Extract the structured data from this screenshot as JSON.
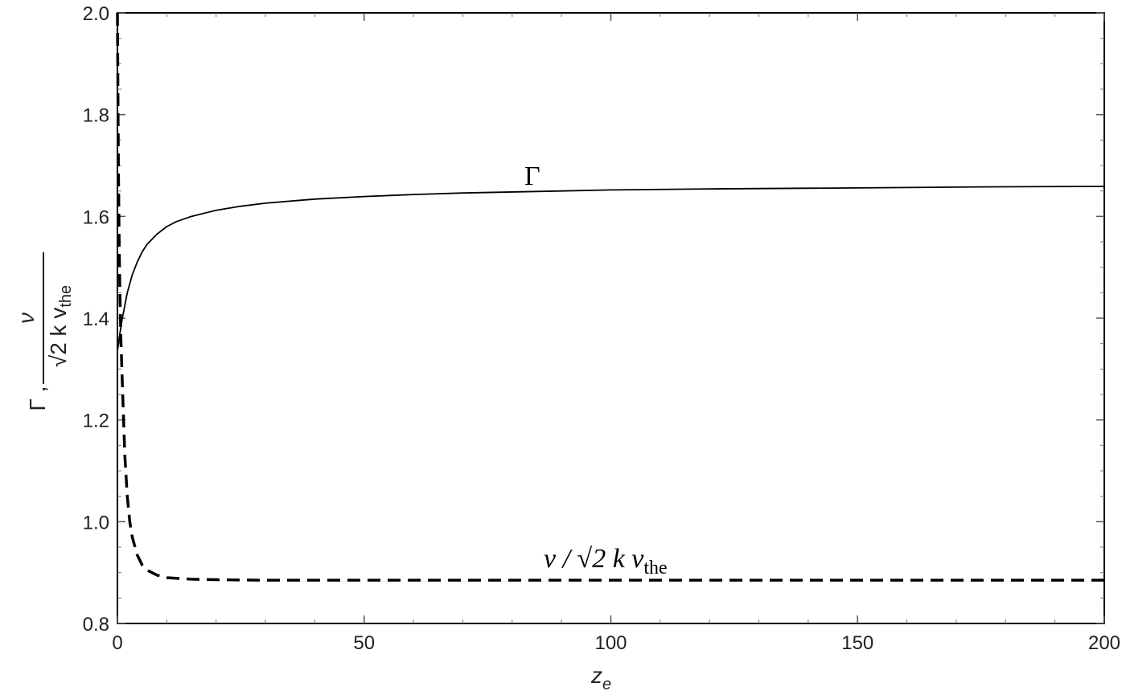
{
  "chart_data": {
    "type": "line",
    "title": "",
    "xlabel": "z",
    "xlabel_sub": "e",
    "ylabel": {
      "prefix": "Γ ,",
      "numerator": "ν",
      "denominator": "√2 k v",
      "denominator_sub": "the"
    },
    "xlim": [
      0,
      200
    ],
    "ylim": [
      0.8,
      2.0
    ],
    "x_ticks": [
      0,
      50,
      100,
      150,
      200
    ],
    "x_tick_labels": [
      "0",
      "50",
      "100",
      "150",
      "200"
    ],
    "y_ticks": [
      0.8,
      1.0,
      1.2,
      1.4,
      1.6,
      1.8,
      2.0
    ],
    "y_tick_labels": [
      "0.8",
      "1.0",
      "1.2",
      "1.4",
      "1.6",
      "1.8",
      "2.0"
    ],
    "grid": false,
    "series": [
      {
        "name": "Γ",
        "style": "solid",
        "color": "#000000",
        "x": [
          0,
          0.5,
          1,
          2,
          3,
          4,
          5,
          6,
          8,
          10,
          12,
          15,
          20,
          25,
          30,
          40,
          50,
          60,
          70,
          80,
          90,
          100,
          120,
          150,
          175,
          200
        ],
        "y": [
          1.335,
          1.37,
          1.4,
          1.45,
          1.485,
          1.51,
          1.53,
          1.545,
          1.565,
          1.58,
          1.59,
          1.6,
          1.612,
          1.62,
          1.626,
          1.634,
          1.639,
          1.643,
          1.646,
          1.648,
          1.65,
          1.652,
          1.654,
          1.656,
          1.658,
          1.659
        ]
      },
      {
        "name": "ν / √2 k v",
        "name_sub": "the",
        "style": "dashed",
        "color": "#000000",
        "x": [
          0,
          0.1,
          0.2,
          0.35,
          0.5,
          0.7,
          1,
          1.5,
          2,
          2.5,
          3,
          4,
          5,
          6,
          8,
          10,
          15,
          20,
          30,
          50,
          100,
          150,
          200
        ],
        "y": [
          2.0,
          1.85,
          1.7,
          1.55,
          1.45,
          1.36,
          1.27,
          1.13,
          1.05,
          1.0,
          0.97,
          0.935,
          0.915,
          0.905,
          0.895,
          0.89,
          0.887,
          0.886,
          0.885,
          0.885,
          0.885,
          0.885,
          0.885
        ]
      }
    ]
  }
}
